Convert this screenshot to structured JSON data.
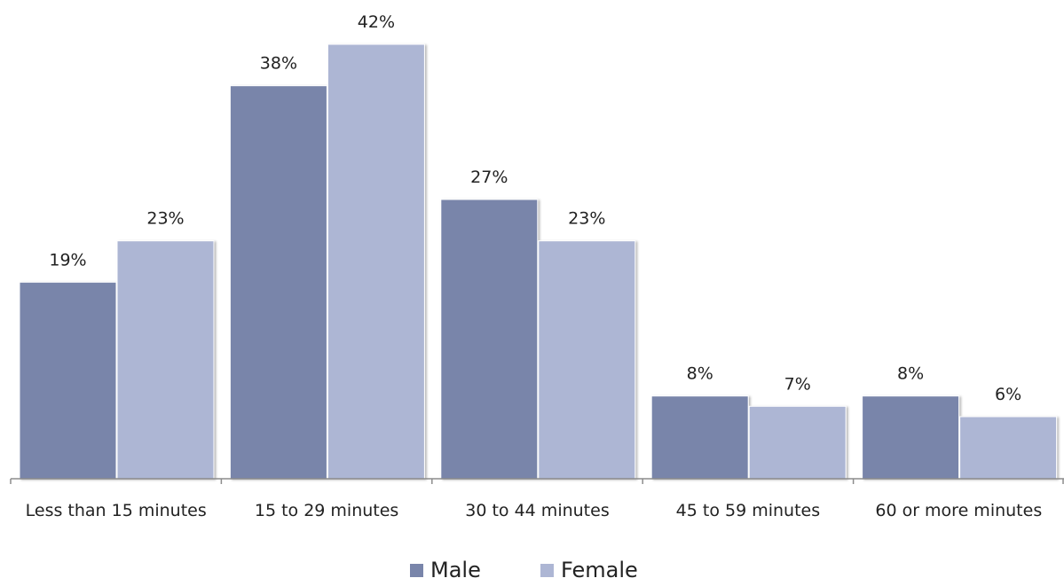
{
  "chart_data": {
    "type": "bar",
    "categories": [
      "Less than 15 minutes",
      "15 to 29 minutes",
      "30 to 44 minutes",
      "45 to 59 minutes",
      "60 or more minutes"
    ],
    "series": [
      {
        "name": "Male",
        "values": [
          19,
          38,
          27,
          8,
          8
        ],
        "labels": [
          "19%",
          "38%",
          "27%",
          "8%",
          "8%"
        ],
        "color": "#7985AA"
      },
      {
        "name": "Female",
        "values": [
          23,
          42,
          23,
          7,
          6
        ],
        "labels": [
          "23%",
          "42%",
          "23%",
          "7%",
          "6%"
        ],
        "color": "#ADB6D4"
      }
    ],
    "ylim": [
      0,
      42
    ],
    "grid": false,
    "legend_position": "bottom",
    "axis_color": "#8C8C8C"
  }
}
